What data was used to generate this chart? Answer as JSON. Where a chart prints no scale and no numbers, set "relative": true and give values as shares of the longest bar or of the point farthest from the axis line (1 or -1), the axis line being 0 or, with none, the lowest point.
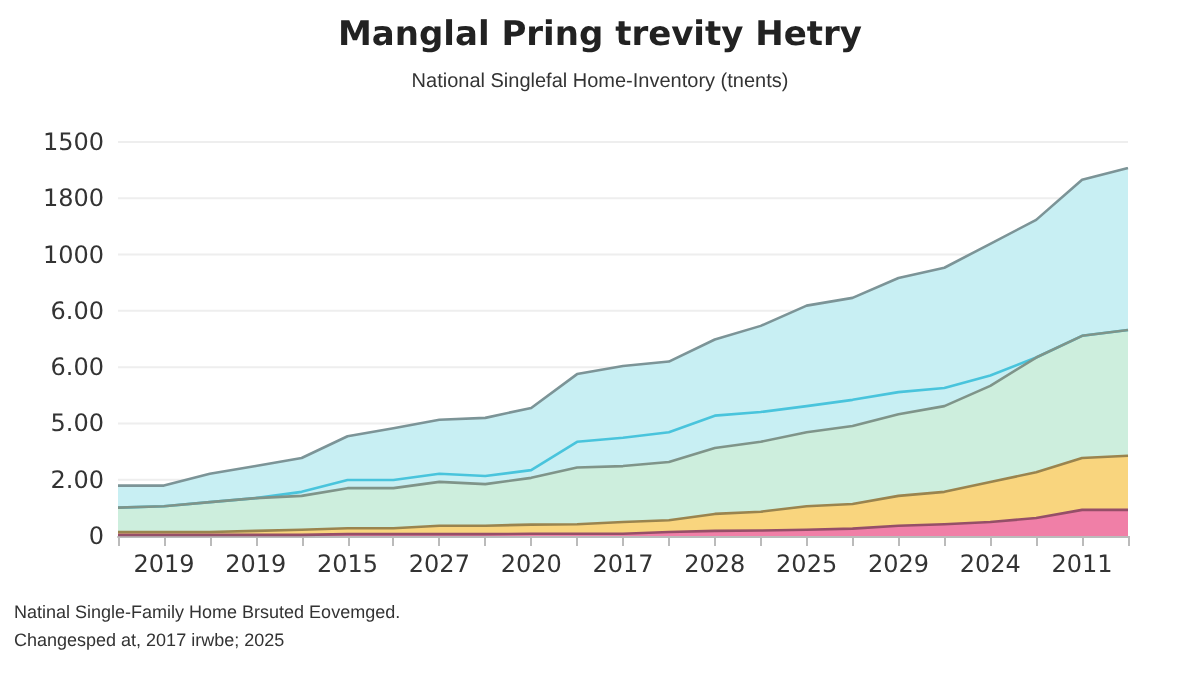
{
  "chart_data": {
    "type": "area",
    "title": "Manglal Pring trevity Hetry",
    "subtitle": "National Singlefal Home-Inventory (tnents)",
    "relative": true,
    "categories": [
      null,
      "2019",
      null,
      "2019",
      null,
      "2015",
      null,
      "2027",
      null,
      "2020",
      null,
      "2017",
      null,
      "2028",
      null,
      "2025",
      null,
      "2029",
      null,
      "2024",
      null,
      "2011",
      null
    ],
    "series": [
      {
        "color": "#c8eff3",
        "values": [
          0.137,
          0.137,
          0.169,
          0.19,
          0.212,
          0.271,
          0.293,
          0.316,
          0.321,
          0.348,
          0.44,
          0.462,
          0.474,
          0.534,
          0.571,
          0.626,
          0.647,
          0.701,
          0.729,
          0.794,
          0.859,
          0.968,
          1
        ]
      },
      {
        "type": "line",
        "color": "#49c4dc",
        "values": [
          0.077,
          0.081,
          0.092,
          0.103,
          0.12,
          0.152,
          0.152,
          0.169,
          0.163,
          0.179,
          0.256,
          0.267,
          0.282,
          0.327,
          0.337,
          0.353,
          0.37,
          0.391,
          0.402,
          0.436,
          0.485,
          0.544,
          0.56
        ]
      },
      {
        "color": "#cdeedd",
        "values": [
          0.077,
          0.081,
          0.092,
          0.103,
          0.109,
          0.13,
          0.13,
          0.147,
          0.141,
          0.158,
          0.186,
          0.19,
          0.201,
          0.239,
          0.256,
          0.282,
          0.299,
          0.331,
          0.353,
          0.408,
          0.485,
          0.544,
          0.56
        ]
      },
      {
        "color": "#f9d57e",
        "values": [
          0.011,
          0.011,
          0.011,
          0.014,
          0.017,
          0.021,
          0.021,
          0.028,
          0.028,
          0.031,
          0.032,
          0.038,
          0.043,
          0.06,
          0.066,
          0.081,
          0.087,
          0.109,
          0.12,
          0.147,
          0.173,
          0.212,
          0.218
        ]
      },
      {
        "color": "#f07fa7",
        "values": [
          0.003,
          0.003,
          0.003,
          0.003,
          0.003,
          0.005,
          0.005,
          0.005,
          0.005,
          0.006,
          0.006,
          0.006,
          0.011,
          0.014,
          0.015,
          0.017,
          0.02,
          0.028,
          0.032,
          0.038,
          0.049,
          0.071,
          0.071
        ]
      }
    ],
    "grid": "y",
    "marker": "none",
    "line_style": "solid",
    "annotations": [
      "0",
      "2.00",
      "5.00",
      "6.00",
      "6.00",
      "1000",
      "1800",
      "1500",
      "Natinal Single-Family Home Brsuted Eovemged.\nChangesped at, 2017 irwbe; 2025"
    ]
  }
}
